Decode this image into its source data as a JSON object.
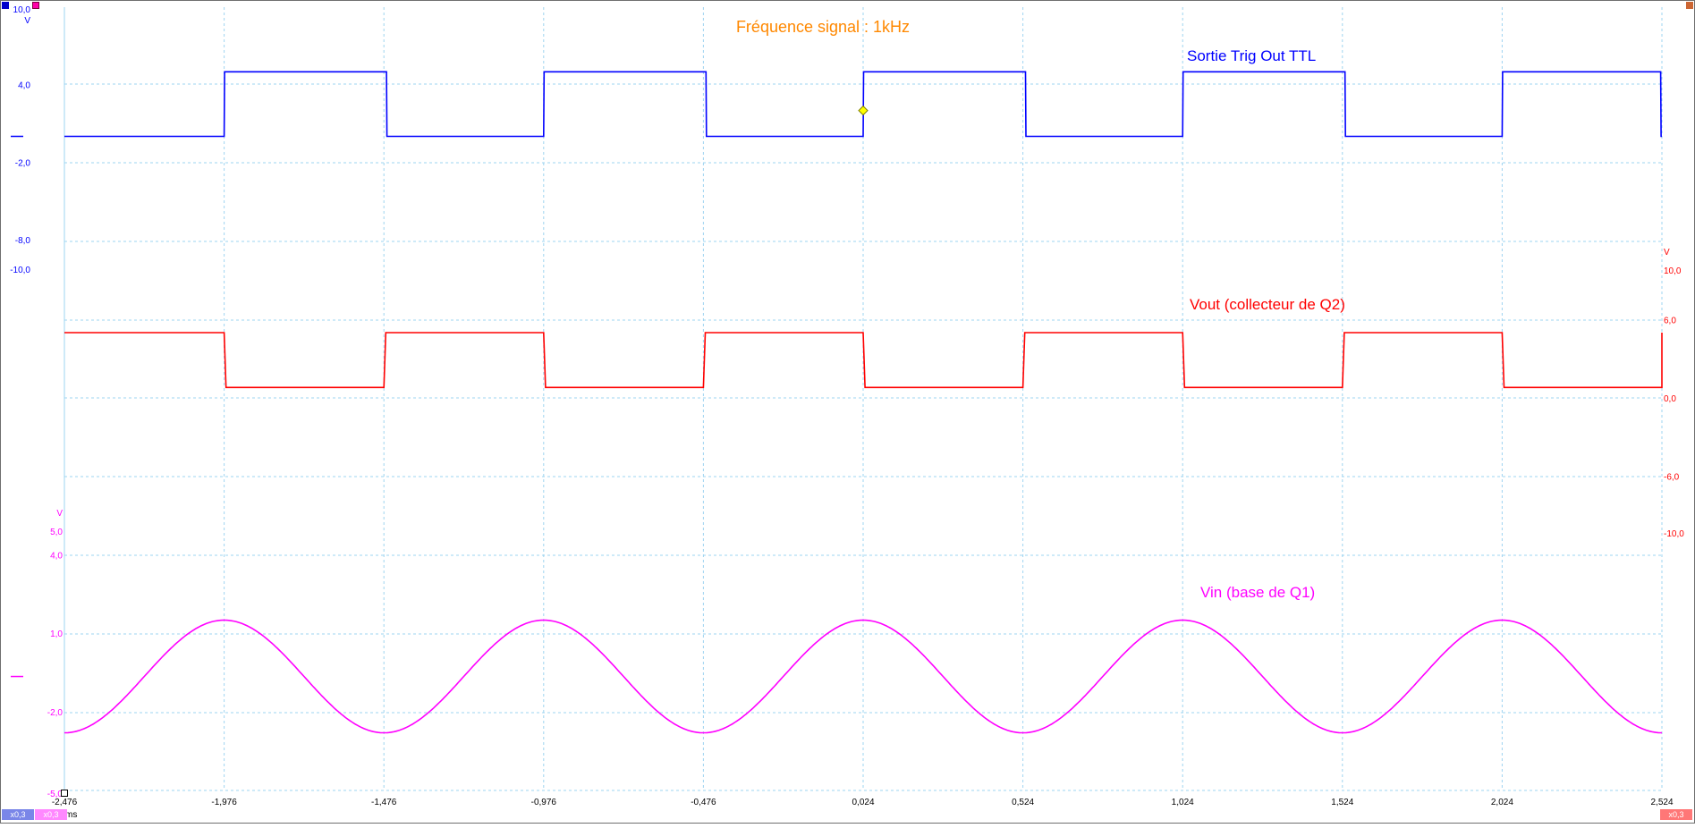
{
  "chart_data": {
    "type": "line",
    "title": "Fréquence signal : 1kHz",
    "x": {
      "unit": "ms",
      "range": [
        -2.476,
        2.524
      ],
      "ticks": [
        "-2,476",
        "-1,976",
        "-1,476",
        "-0,976",
        "-0,476",
        "0,024",
        "0,524",
        "1,024",
        "1,524",
        "2,024",
        "2,524"
      ]
    },
    "grid": true,
    "axes": [
      {
        "id": "blue",
        "color": "#0000ff",
        "unit": "V",
        "range": [
          -10,
          10
        ],
        "ticks": [
          {
            "label": "4,0",
            "value": 4
          },
          {
            "label": "-2,0",
            "value": -2
          },
          {
            "label": "-8,0",
            "value": -8
          }
        ],
        "max_label": "10,0",
        "min_label": "-10,0"
      },
      {
        "id": "red",
        "color": "#ff0000",
        "unit": "V",
        "range": [
          -10,
          10
        ],
        "ticks": [
          {
            "label": "6,0",
            "value": 6
          },
          {
            "label": "0,0",
            "value": 0
          },
          {
            "label": "-6,0",
            "value": -6
          }
        ],
        "max_label": "10,0",
        "min_label": "-10,0"
      },
      {
        "id": "magenta",
        "color": "#ff00ff",
        "unit": "V",
        "range": [
          -5,
          5
        ],
        "ticks": [
          {
            "label": "4,0",
            "value": 4
          },
          {
            "label": "1,0",
            "value": 1
          },
          {
            "label": "-2,0",
            "value": -2
          }
        ],
        "max_label": "5,0",
        "min_label": "-5,0"
      }
    ],
    "series": [
      {
        "name": "Sortie Trig Out TTL",
        "axis": "blue",
        "color": "#0000ff",
        "kind": "square",
        "high": 5.0,
        "low": 0.0,
        "rising_edges": [
          -1.976,
          -0.976,
          0.024,
          1.024,
          2.024
        ],
        "falling_edges": [
          -1.468,
          -0.468,
          0.532,
          1.532,
          2.52
        ]
      },
      {
        "name": "Vout (collecteur de Q2)",
        "axis": "red",
        "color": "#ff0000",
        "kind": "square",
        "high": 5.0,
        "low": 0.8,
        "falling_edges": [
          -1.976,
          -0.976,
          0.024,
          1.024,
          2.024
        ],
        "rising_edges": [
          -1.476,
          -0.476,
          0.524,
          1.524,
          2.524
        ]
      },
      {
        "name": "Vin (base de Q1)",
        "axis": "magenta",
        "color": "#ff00ff",
        "kind": "sine",
        "amplitude": 2.15,
        "offset": -0.65,
        "frequency_khz": 1.0,
        "peak_at": 0.024
      }
    ],
    "cursor": {
      "x": 0.024,
      "y": 2.0,
      "axis": "blue",
      "color": "#ffff00"
    },
    "scale_buttons": [
      "x0,3",
      "x0,3",
      "x0,3"
    ]
  }
}
